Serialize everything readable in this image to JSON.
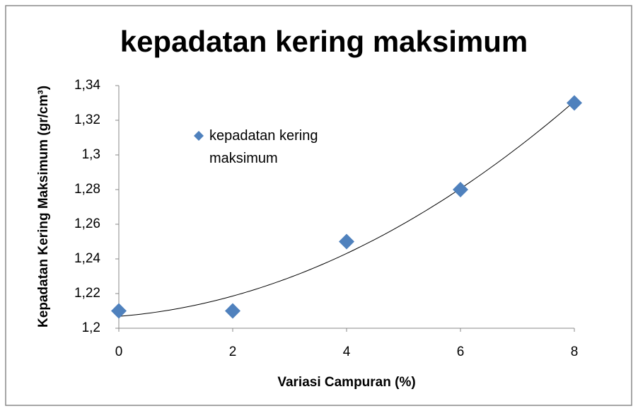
{
  "chart_data": {
    "type": "scatter",
    "title": "kepadatan kering maksimum",
    "x_label": "Variasi Campuran (%)",
    "y_label": "Kepadatan Kering Maksimum (gr/cm³)",
    "series": [
      {
        "name": "kepadatan kering maksimum",
        "color": "#4f81bd",
        "x": [
          0,
          2,
          4,
          6,
          8
        ],
        "values": [
          1.21,
          1.21,
          1.25,
          1.28,
          1.33
        ]
      }
    ],
    "trendline": "polynomial",
    "trendline_order": 2,
    "trendline_color": "#000000",
    "xlim": [
      0,
      8
    ],
    "xticks": [
      0,
      2,
      4,
      6,
      8
    ],
    "ylim": [
      1.2,
      1.34
    ],
    "yticks": [
      {
        "value": 1.2,
        "label": "1,2"
      },
      {
        "value": 1.22,
        "label": "1,22"
      },
      {
        "value": 1.24,
        "label": "1,24"
      },
      {
        "value": 1.26,
        "label": "1,26"
      },
      {
        "value": 1.28,
        "label": "1,28"
      },
      {
        "value": 1.3,
        "label": "1,3"
      },
      {
        "value": 1.32,
        "label": "1,32"
      },
      {
        "value": 1.34,
        "label": "1,34"
      }
    ],
    "grid": false,
    "legend": "upper left"
  }
}
